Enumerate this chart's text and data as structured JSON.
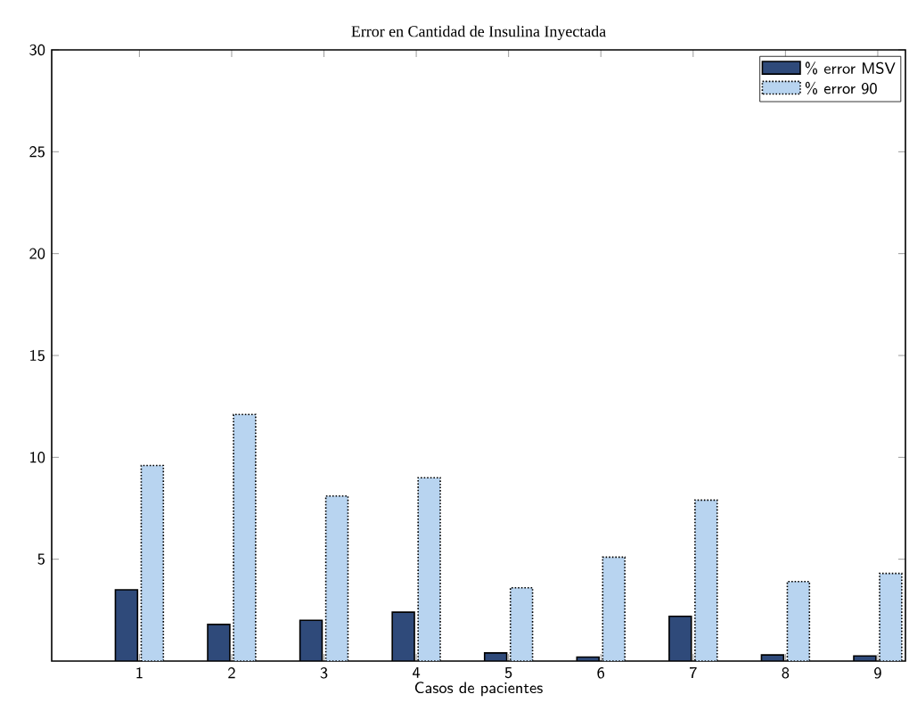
{
  "chart_data": {
    "type": "bar",
    "title": "Error en Cantidad de Insulina Inyectada",
    "xlabel": "Casos de pacientes",
    "categories": [
      "1",
      "2",
      "3",
      "4",
      "5",
      "6",
      "7",
      "8",
      "9"
    ],
    "series": [
      {
        "name": "% error MSV",
        "color": "#2f4a7a",
        "line_style": "solid",
        "values": [
          3.5,
          1.8,
          2.0,
          2.4,
          0.4,
          0.2,
          2.2,
          0.3,
          0.25
        ]
      },
      {
        "name": "% error 90",
        "color": "#b8d4f0",
        "line_style": "dotted",
        "values": [
          9.6,
          12.1,
          8.1,
          9.0,
          3.6,
          5.1,
          7.9,
          3.9,
          4.3
        ]
      }
    ],
    "ylim": [
      0,
      30
    ],
    "yticks": [
      5,
      10,
      15,
      20,
      25,
      30
    ],
    "grid": false,
    "legend": "top right"
  }
}
